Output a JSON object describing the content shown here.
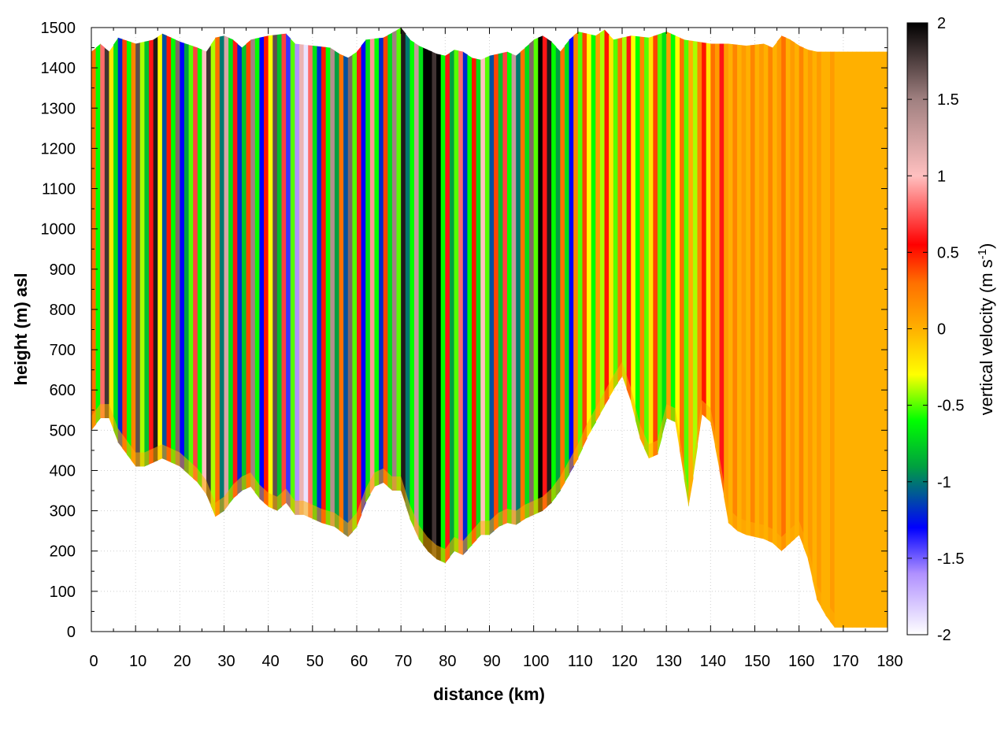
{
  "chart_data": {
    "type": "heatmap",
    "title": "",
    "xlabel": "distance (km)",
    "ylabel": "height (m) asl",
    "xlim": [
      0,
      180
    ],
    "ylim": [
      0,
      1500
    ],
    "x_ticks": [
      "0",
      "10",
      "20",
      "30",
      "40",
      "50",
      "60",
      "70",
      "80",
      "90",
      "100",
      "110",
      "120",
      "130",
      "140",
      "150",
      "160",
      "170",
      "180"
    ],
    "y_ticks": [
      "0",
      "100",
      "200",
      "300",
      "400",
      "500",
      "600",
      "700",
      "800",
      "900",
      "1000",
      "1100",
      "1200",
      "1300",
      "1400",
      "1500"
    ],
    "grid": true,
    "colorbar": {
      "label_main": "vertical velocity (m s",
      "label_sup": "-1",
      "label_end": ")",
      "range": [
        -2,
        2
      ],
      "ticks": [
        "-2",
        "-1.5",
        "-1",
        "-0.5",
        "0",
        "0.5",
        "1",
        "1.5",
        "2"
      ],
      "stops": [
        {
          "value": -2.0,
          "color": "#ffffff"
        },
        {
          "value": -1.6,
          "color": "#b090ff"
        },
        {
          "value": -1.3,
          "color": "#0000ff"
        },
        {
          "value": -0.9,
          "color": "#00a040"
        },
        {
          "value": -0.6,
          "color": "#00ff00"
        },
        {
          "value": -0.3,
          "color": "#ffff00"
        },
        {
          "value": 0.0,
          "color": "#ffb000"
        },
        {
          "value": 0.3,
          "color": "#ff7000"
        },
        {
          "value": 0.55,
          "color": "#ff0000"
        },
        {
          "value": 1.0,
          "color": "#ffc0c0"
        },
        {
          "value": 1.5,
          "color": "#a08080"
        },
        {
          "value": 2.0,
          "color": "#000000"
        }
      ]
    },
    "terrain_bottom": [
      [
        0,
        500
      ],
      [
        2,
        530
      ],
      [
        4,
        530
      ],
      [
        6,
        470
      ],
      [
        8,
        440
      ],
      [
        10,
        410
      ],
      [
        12,
        410
      ],
      [
        14,
        420
      ],
      [
        16,
        430
      ],
      [
        20,
        410
      ],
      [
        24,
        370
      ],
      [
        26,
        340
      ],
      [
        28,
        285
      ],
      [
        30,
        300
      ],
      [
        32,
        330
      ],
      [
        34,
        350
      ],
      [
        36,
        360
      ],
      [
        38,
        330
      ],
      [
        40,
        310
      ],
      [
        42,
        300
      ],
      [
        44,
        320
      ],
      [
        46,
        290
      ],
      [
        48,
        290
      ],
      [
        50,
        280
      ],
      [
        52,
        270
      ],
      [
        55,
        260
      ],
      [
        58,
        235
      ],
      [
        60,
        260
      ],
      [
        62,
        320
      ],
      [
        64,
        360
      ],
      [
        66,
        370
      ],
      [
        68,
        350
      ],
      [
        70,
        350
      ],
      [
        72,
        280
      ],
      [
        74,
        230
      ],
      [
        76,
        200
      ],
      [
        78,
        180
      ],
      [
        80,
        170
      ],
      [
        82,
        200
      ],
      [
        84,
        190
      ],
      [
        86,
        215
      ],
      [
        88,
        240
      ],
      [
        90,
        240
      ],
      [
        92,
        260
      ],
      [
        94,
        270
      ],
      [
        96,
        265
      ],
      [
        98,
        280
      ],
      [
        100,
        290
      ],
      [
        102,
        300
      ],
      [
        104,
        320
      ],
      [
        106,
        350
      ],
      [
        108,
        390
      ],
      [
        110,
        430
      ],
      [
        112,
        480
      ],
      [
        114,
        520
      ],
      [
        116,
        560
      ],
      [
        118,
        600
      ],
      [
        120,
        635
      ],
      [
        122,
        570
      ],
      [
        124,
        480
      ],
      [
        126,
        430
      ],
      [
        128,
        440
      ],
      [
        130,
        530
      ],
      [
        132,
        520
      ],
      [
        134,
        380
      ],
      [
        135,
        310
      ],
      [
        136,
        380
      ],
      [
        138,
        540
      ],
      [
        140,
        520
      ],
      [
        142,
        400
      ],
      [
        144,
        270
      ],
      [
        146,
        250
      ],
      [
        148,
        240
      ],
      [
        150,
        235
      ],
      [
        152,
        230
      ],
      [
        154,
        220
      ],
      [
        156,
        200
      ],
      [
        158,
        220
      ],
      [
        160,
        240
      ],
      [
        162,
        180
      ],
      [
        164,
        80
      ],
      [
        166,
        40
      ],
      [
        168,
        10
      ],
      [
        180,
        10
      ]
    ],
    "terrain_top": [
      [
        0,
        1440
      ],
      [
        2,
        1460
      ],
      [
        4,
        1440
      ],
      [
        6,
        1475
      ],
      [
        10,
        1460
      ],
      [
        14,
        1470
      ],
      [
        16,
        1485
      ],
      [
        20,
        1465
      ],
      [
        24,
        1450
      ],
      [
        26,
        1440
      ],
      [
        28,
        1475
      ],
      [
        30,
        1480
      ],
      [
        32,
        1470
      ],
      [
        34,
        1450
      ],
      [
        36,
        1470
      ],
      [
        40,
        1480
      ],
      [
        44,
        1485
      ],
      [
        46,
        1460
      ],
      [
        50,
        1455
      ],
      [
        54,
        1450
      ],
      [
        56,
        1435
      ],
      [
        58,
        1425
      ],
      [
        60,
        1440
      ],
      [
        62,
        1470
      ],
      [
        66,
        1475
      ],
      [
        70,
        1500
      ],
      [
        72,
        1470
      ],
      [
        74,
        1455
      ],
      [
        76,
        1445
      ],
      [
        78,
        1435
      ],
      [
        80,
        1430
      ],
      [
        82,
        1445
      ],
      [
        84,
        1440
      ],
      [
        86,
        1425
      ],
      [
        88,
        1420
      ],
      [
        90,
        1430
      ],
      [
        94,
        1440
      ],
      [
        96,
        1430
      ],
      [
        98,
        1450
      ],
      [
        100,
        1470
      ],
      [
        102,
        1480
      ],
      [
        104,
        1465
      ],
      [
        106,
        1440
      ],
      [
        108,
        1470
      ],
      [
        110,
        1490
      ],
      [
        114,
        1480
      ],
      [
        116,
        1495
      ],
      [
        118,
        1470
      ],
      [
        122,
        1480
      ],
      [
        126,
        1475
      ],
      [
        130,
        1490
      ],
      [
        134,
        1470
      ],
      [
        140,
        1460
      ],
      [
        144,
        1460
      ],
      [
        148,
        1455
      ],
      [
        152,
        1460
      ],
      [
        154,
        1450
      ],
      [
        156,
        1480
      ],
      [
        158,
        1470
      ],
      [
        160,
        1455
      ],
      [
        162,
        1445
      ],
      [
        164,
        1440
      ],
      [
        180,
        1440
      ]
    ],
    "velocity_columns": [
      [
        0.5,
        0.3
      ],
      [
        1.5,
        -0.6
      ],
      [
        2.5,
        0.8
      ],
      [
        3.5,
        1.8
      ],
      [
        4.5,
        -0.2
      ],
      [
        5.5,
        -0.7
      ],
      [
        6.5,
        -1.2
      ],
      [
        7.5,
        0.4
      ],
      [
        8.5,
        -0.6
      ],
      [
        9.5,
        0.2
      ],
      [
        10.5,
        1.7
      ],
      [
        11.5,
        -0.4
      ],
      [
        12.5,
        -0.8
      ],
      [
        13.5,
        0.6
      ],
      [
        14.5,
        1.9
      ],
      [
        15.5,
        -0.3
      ],
      [
        16.5,
        -1.1
      ],
      [
        17.5,
        0.5
      ],
      [
        18.5,
        -0.6
      ],
      [
        19.5,
        1.6
      ],
      [
        20.5,
        -1.3
      ],
      [
        21.5,
        -0.9
      ],
      [
        22.5,
        -0.5
      ],
      [
        23.5,
        0.7
      ],
      [
        24.5,
        -0.6
      ],
      [
        25.5,
        1.0
      ],
      [
        26.5,
        1.8
      ],
      [
        27.5,
        -0.4
      ],
      [
        28.5,
        0.3
      ],
      [
        29.5,
        -1.0
      ],
      [
        30.5,
        1.2
      ],
      [
        31.5,
        -0.7
      ],
      [
        32.5,
        0.6
      ],
      [
        33.5,
        -1.2
      ],
      [
        34.5,
        -0.8
      ],
      [
        35.5,
        0.4
      ],
      [
        36.5,
        1.5
      ],
      [
        37.5,
        -0.6
      ],
      [
        38.5,
        -1.3
      ],
      [
        39.5,
        0.5
      ],
      [
        40.5,
        -0.3
      ],
      [
        41.5,
        1.7
      ],
      [
        42.5,
        -0.8
      ],
      [
        43.5,
        0.7
      ],
      [
        44.5,
        -1.4
      ],
      [
        45.5,
        -0.5
      ],
      [
        46.5,
        -1.6
      ],
      [
        47.5,
        1.1
      ],
      [
        48.5,
        -1.9
      ],
      [
        49.5,
        0.8
      ],
      [
        50.5,
        -0.7
      ],
      [
        51.5,
        -1.2
      ],
      [
        52.5,
        0.5
      ],
      [
        53.5,
        -0.6
      ],
      [
        54.5,
        1.4
      ],
      [
        55.5,
        -0.9
      ],
      [
        56.5,
        0.3
      ],
      [
        57.5,
        -1.1
      ],
      [
        58.5,
        1.6
      ],
      [
        59.5,
        -0.5
      ],
      [
        60.5,
        0.6
      ],
      [
        61.5,
        -1.3
      ],
      [
        62.5,
        -0.7
      ],
      [
        63.5,
        0.9
      ],
      [
        64.5,
        -0.6
      ],
      [
        65.5,
        -1.2
      ],
      [
        66.5,
        0.4
      ],
      [
        67.5,
        -0.7
      ],
      [
        68.5,
        1.5
      ],
      [
        69.5,
        -0.5
      ],
      [
        70.5,
        1.9
      ],
      [
        71.5,
        -1.0
      ],
      [
        72.5,
        -0.6
      ],
      [
        73.5,
        1.3
      ],
      [
        74.5,
        -0.7
      ],
      [
        75.5,
        2.0
      ],
      [
        76.5,
        2.0
      ],
      [
        77.5,
        1.8
      ],
      [
        78.5,
        2.0
      ],
      [
        79.5,
        -0.6
      ],
      [
        80.5,
        0.6
      ],
      [
        81.5,
        -0.9
      ],
      [
        82.5,
        -0.5
      ],
      [
        83.5,
        0.8
      ],
      [
        84.5,
        -1.2
      ],
      [
        85.5,
        -0.6
      ],
      [
        86.5,
        0.5
      ],
      [
        87.5,
        -0.7
      ],
      [
        88.5,
        1.0
      ],
      [
        89.5,
        -0.5
      ],
      [
        90.5,
        -1.1
      ],
      [
        91.5,
        0.4
      ],
      [
        92.5,
        -0.8
      ],
      [
        93.5,
        0.7
      ],
      [
        94.5,
        -0.6
      ],
      [
        95.5,
        1.3
      ],
      [
        96.5,
        -1.0
      ],
      [
        97.5,
        0.3
      ],
      [
        98.5,
        -0.7
      ],
      [
        99.5,
        1.6
      ],
      [
        100.5,
        -0.5
      ],
      [
        101.5,
        2.0
      ],
      [
        102.5,
        0.6
      ],
      [
        103.5,
        1.9
      ],
      [
        104.5,
        -0.6
      ],
      [
        105.5,
        -0.9
      ],
      [
        106.5,
        0.3
      ],
      [
        107.5,
        -0.7
      ],
      [
        108.5,
        -1.3
      ],
      [
        109.5,
        0.2
      ],
      [
        110.5,
        -0.5
      ],
      [
        111.5,
        0.4
      ],
      [
        112.5,
        -0.3
      ],
      [
        113.5,
        -0.6
      ],
      [
        114.5,
        0.1
      ],
      [
        115.5,
        -0.4
      ],
      [
        116.5,
        0.5
      ],
      [
        117.5,
        -0.2
      ],
      [
        118.5,
        -0.5
      ],
      [
        119.5,
        0.3
      ],
      [
        120.5,
        -0.4
      ],
      [
        121.5,
        0.6
      ],
      [
        122.5,
        -0.3
      ],
      [
        123.5,
        -0.6
      ],
      [
        124.5,
        0.2
      ],
      [
        125.5,
        -0.5
      ],
      [
        126.5,
        -0.2
      ],
      [
        127.5,
        0.4
      ],
      [
        128.5,
        -0.5
      ],
      [
        129.5,
        -0.7
      ],
      [
        130.5,
        0.1
      ],
      [
        131.5,
        -0.6
      ],
      [
        132.5,
        -0.3
      ],
      [
        133.5,
        0.3
      ],
      [
        134.5,
        -0.5
      ],
      [
        135.5,
        0.0
      ],
      [
        136.5,
        -0.4
      ],
      [
        137.5,
        0.2
      ],
      [
        138.5,
        0.5
      ],
      [
        139.5,
        -0.2
      ],
      [
        140.5,
        0.3
      ],
      [
        141.5,
        0.1
      ],
      [
        142.5,
        0.6
      ],
      [
        143.5,
        0.1
      ],
      [
        144.5,
        0.0
      ],
      [
        145.5,
        0.2
      ],
      [
        146.5,
        0.0
      ],
      [
        147.5,
        0.1
      ],
      [
        148.5,
        0.0
      ],
      [
        149.5,
        0.2
      ],
      [
        150.5,
        0.0
      ],
      [
        151.5,
        0.1
      ],
      [
        152.5,
        0.0
      ],
      [
        153.5,
        0.2
      ],
      [
        154.5,
        0.0
      ],
      [
        155.5,
        0.1
      ],
      [
        156.5,
        0.3
      ],
      [
        157.5,
        0.0
      ],
      [
        158.5,
        0.1
      ],
      [
        159.5,
        0.0
      ],
      [
        160.5,
        0.2
      ],
      [
        161.5,
        0.0
      ],
      [
        162.5,
        0.1
      ],
      [
        163.5,
        0.0
      ],
      [
        164.5,
        0.1
      ],
      [
        165.5,
        0.0
      ],
      [
        166.5,
        0.0
      ],
      [
        167.5,
        0.1
      ],
      [
        168.5,
        0.0
      ],
      [
        169.5,
        0.0
      ],
      [
        170.5,
        0.0
      ],
      [
        171.5,
        0.0
      ],
      [
        172.5,
        0.0
      ],
      [
        173.5,
        0.0
      ],
      [
        174.5,
        0.0
      ],
      [
        175.5,
        0.0
      ],
      [
        176.5,
        0.0
      ],
      [
        177.5,
        0.0
      ],
      [
        178.5,
        0.0
      ],
      [
        179.5,
        0.0
      ]
    ]
  }
}
